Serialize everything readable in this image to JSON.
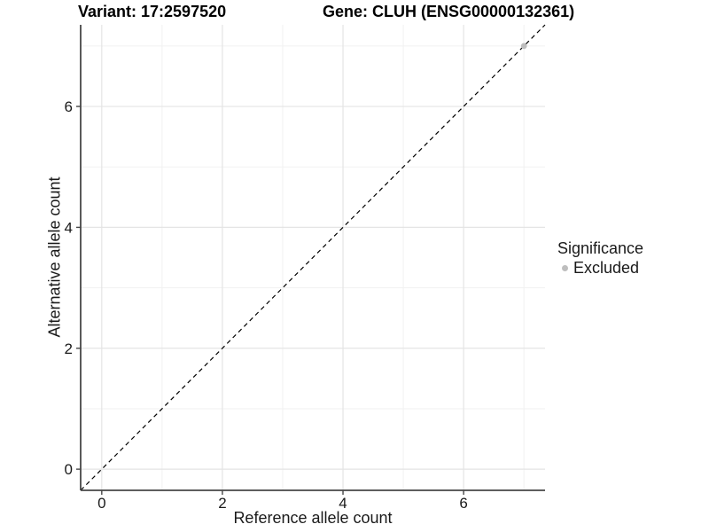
{
  "chart_data": {
    "type": "scatter",
    "titles": {
      "left": "Variant: 17:2597520",
      "right": "Gene: CLUH (ENSG00000132361)"
    },
    "xlabel": "Reference allele count",
    "ylabel": "Alternative allele count",
    "xlim": [
      -0.35,
      7.35
    ],
    "ylim": [
      -0.35,
      7.35
    ],
    "xticks": [
      0,
      2,
      4,
      6
    ],
    "yticks": [
      0,
      2,
      4,
      6
    ],
    "xticks_minor": [
      1,
      3,
      5,
      7
    ],
    "yticks_minor": [
      1,
      3,
      5,
      7
    ],
    "grid": "major and minor, light gray on white panel",
    "series": [
      {
        "name": "Excluded",
        "color": "#bebebe",
        "points": [
          [
            7,
            7
          ]
        ]
      }
    ],
    "reference_line": {
      "kind": "identity y=x",
      "style": "dashed",
      "color": "#000000",
      "x1": -0.35,
      "y1": -0.35,
      "x2": 7.35,
      "y2": 7.35
    },
    "legend": {
      "title": "Significance",
      "position": "right",
      "items": [
        {
          "label": "Excluded",
          "color": "#bebebe"
        }
      ]
    },
    "colors": {
      "grid_major": "#e4e4e4",
      "grid_minor": "#f1f1f1",
      "axis_line": "#474747",
      "text": "#1a1a1a",
      "background": "#ffffff"
    }
  }
}
